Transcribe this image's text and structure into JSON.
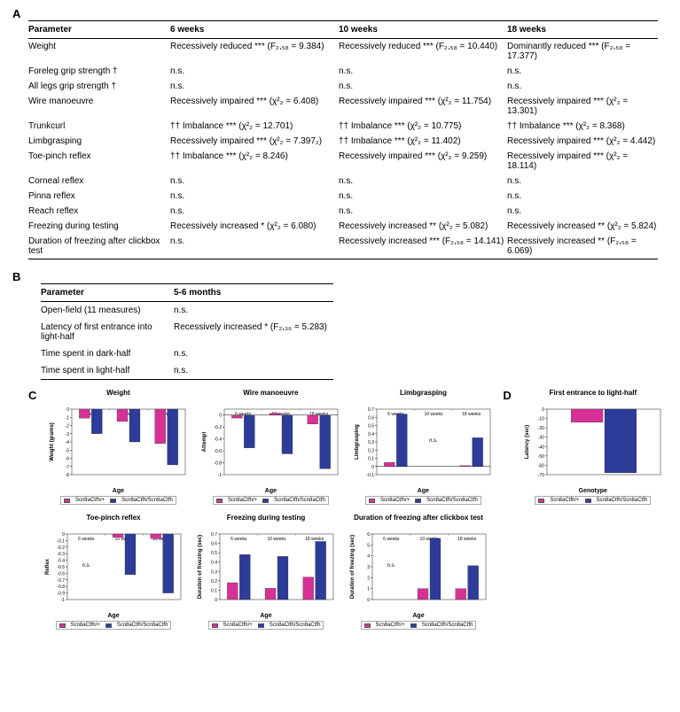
{
  "panelA": {
    "label": "A",
    "headers": [
      "Parameter",
      "6 weeks",
      "10 weeks",
      "18 weeks"
    ],
    "rows": [
      [
        "Weight",
        "Recessively reduced *** (F₂,₅₈ = 9.384)",
        "Recessively reduced *** (F₂,₅₈ = 10.440)",
        "Dominantly reduced *** (F₂,₅₈ = 17.377)"
      ],
      [
        "Foreleg grip strength †",
        "n.s.",
        "n.s.",
        "n.s."
      ],
      [
        "All legs grip strength †",
        "n.s.",
        "n.s.",
        "n.s."
      ],
      [
        "Wire manoeuvre",
        "Recessively impaired *** (χ²₂ = 6.408)",
        "Recessively impaired *** (χ²₂ = 11.754)",
        "Recessively impaired *** (χ²₂ = 13.301)"
      ],
      [
        "Trunkcurl",
        "†† Imbalance *** (χ²₂ = 12.701)",
        "†† Imbalance *** (χ²₂ = 10.775)",
        "†† Imbalance *** (χ²₂ = 8.368)"
      ],
      [
        "Limbgrasping",
        "Recessively impaired *** (χ²₂ = 7.397₂)",
        "†† Imbalance *** (χ²₂ = 11.402)",
        "Recessively impaired *** (χ²₂ = 4.442)"
      ],
      [
        "Toe-pinch reflex",
        "†† Imbalance *** (χ²₂ = 8.246)",
        "Recessively impaired *** (χ²₂ = 9.259)",
        "Recessively impaired *** (χ²₂ = 18.114)"
      ],
      [
        "Corneal reflex",
        "n.s.",
        "n.s.",
        "n.s."
      ],
      [
        "Pinna reflex",
        "n.s.",
        "n.s.",
        "n.s."
      ],
      [
        "Reach reflex",
        "n.s.",
        "n.s.",
        "n.s."
      ],
      [
        "Freezing during testing",
        "Recessively increased * (χ²₂ = 6.080)",
        "Recessively increased ** (χ²₂ = 5.082)",
        "Recessively increased ** (χ²₂ = 5.824)"
      ],
      [
        "Duration of freezing after clickbox test",
        "n.s.",
        "Recessively increased *** (F₂,₅₈ = 14.141)",
        "Recessively increased ** (F₂,₅₈ = 6.069)"
      ]
    ]
  },
  "panelB": {
    "label": "B",
    "headers": [
      "Parameter",
      "5-6 months"
    ],
    "rows": [
      [
        "Open-field (11 measures)",
        "n.s."
      ],
      [
        "Latency of first entrance into light-half",
        "Recessively increased * (F₂,₃₆ = 5.283)"
      ],
      [
        "Time spent in dark-half",
        "n.s."
      ],
      [
        "Time spent in light-half",
        "n.s."
      ]
    ]
  },
  "panelC": {
    "label": "C"
  },
  "panelD": {
    "label": "D"
  },
  "colors": {
    "pink": "#d63296",
    "blue": "#2d3b99",
    "axis": "#000000",
    "plotbg": "#ffffff",
    "legend_labels": [
      "Scn8aCtfh/+",
      "Scn8aCtfh/Scn8aCtfh"
    ]
  },
  "charts": {
    "weight": {
      "title": "Weight",
      "xlabel": "Age",
      "ylabel": "Weight (grams)",
      "ylim": [
        -8,
        0
      ],
      "ytick_step": 1,
      "categories": [
        "6 weeks",
        "10 weeks",
        "18 weeks"
      ],
      "pink": [
        -1.1,
        -1.5,
        -4.2
      ],
      "blue": [
        -3.0,
        -4.0,
        -6.8
      ]
    },
    "wire": {
      "title": "Wire manoeuvre",
      "xlabel": "Age",
      "ylabel": "Attempt",
      "ylim": [
        -1,
        0.1
      ],
      "ytick_step": 0.2,
      "categories": [
        "6 weeks",
        "10 weeks",
        "18 weeks"
      ],
      "pink": [
        -0.05,
        0.03,
        -0.15
      ],
      "blue": [
        -0.55,
        -0.65,
        -0.9
      ]
    },
    "limb": {
      "title": "Limbgrasping",
      "xlabel": "Age",
      "ylabel": "Limbgrasping",
      "ylim": [
        -0.1,
        0.7
      ],
      "ytick_step": 0.1,
      "categories": [
        "6 weeks",
        "10 weeks",
        "18 weeks"
      ],
      "pink": [
        0.05,
        0.0,
        0.01
      ],
      "blue": [
        0.64,
        0.0,
        0.35
      ],
      "ns_at": 1
    },
    "toe": {
      "title": "Toe-pinch reflex",
      "xlabel": "Age",
      "ylabel": "Reflex",
      "ylim": [
        -1,
        0
      ],
      "ytick_step": 0.1,
      "categories": [
        "6 weeks",
        "10 weeks",
        "18 weeks"
      ],
      "pink": [
        0.0,
        -0.05,
        -0.07
      ],
      "blue": [
        0.0,
        -0.62,
        -0.9
      ],
      "ns_at": 0
    },
    "freeze": {
      "title": "Freezing during testing",
      "xlabel": "Age",
      "ylabel": "Duration of freezing (sec)",
      "ylim": [
        0,
        0.7
      ],
      "ytick_step": 0.1,
      "categories": [
        "6 weeks",
        "10 weeks",
        "18 weeks"
      ],
      "pink": [
        0.18,
        0.12,
        0.24
      ],
      "blue": [
        0.48,
        0.46,
        0.62
      ]
    },
    "clickbox": {
      "title": "Duration of freezing after clickbox test",
      "xlabel": "Age",
      "ylabel": "Duration of freezing (sec)",
      "ylim": [
        0,
        6
      ],
      "ytick_step": 1,
      "categories": [
        "6 weeks",
        "10 weeks",
        "18 weeks"
      ],
      "pink": [
        0.0,
        1.0,
        1.0
      ],
      "blue": [
        0.0,
        5.6,
        3.1
      ],
      "ns_at": 0
    },
    "lighthalf": {
      "title": "First entrance to light-half",
      "xlabel": "Genotype",
      "ylabel": "Latency (sec)",
      "ylim": [
        -70,
        0
      ],
      "ytick_step": 10,
      "categories": [
        ""
      ],
      "pink": [
        -14
      ],
      "blue": [
        -68
      ]
    }
  }
}
